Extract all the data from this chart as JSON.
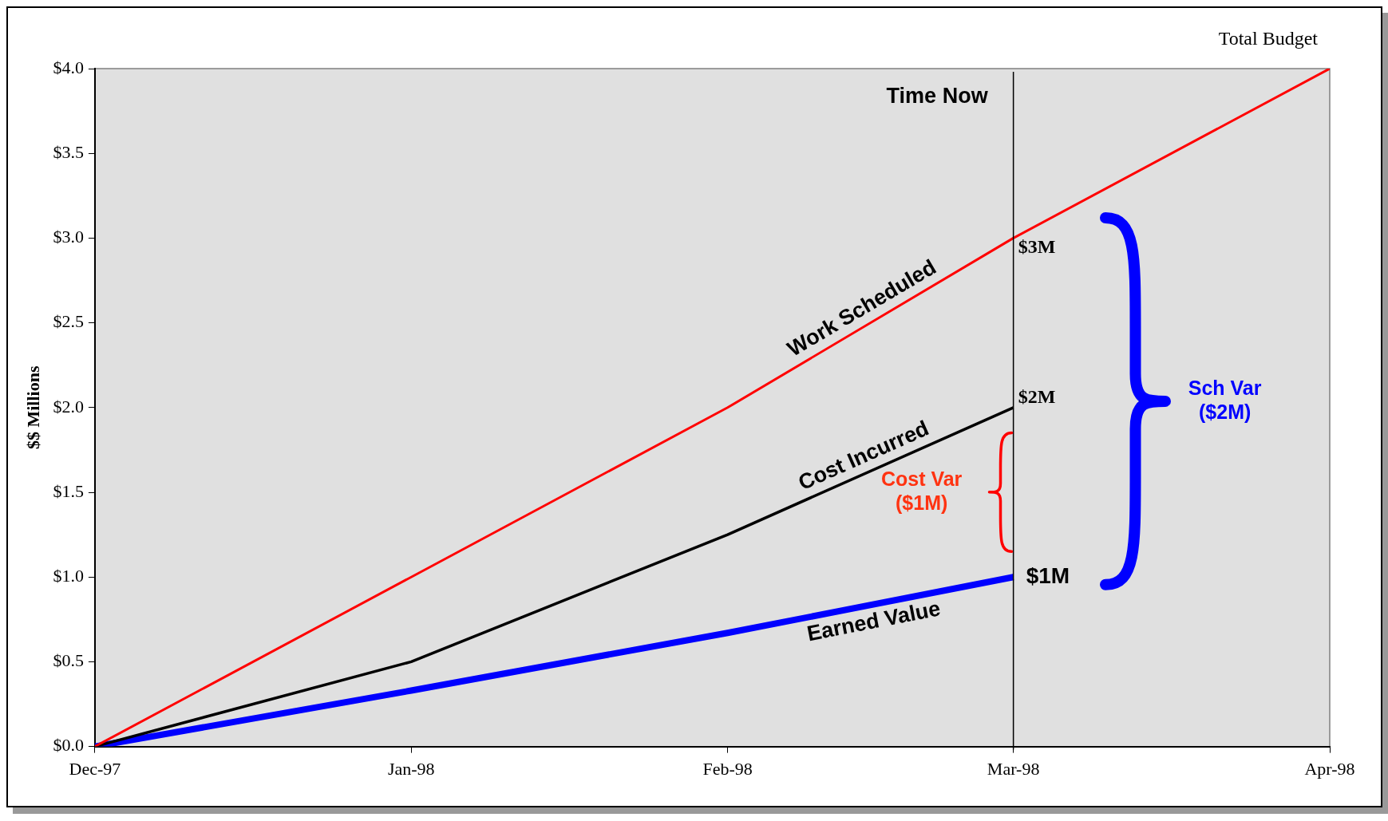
{
  "chart_data": {
    "type": "line",
    "x": [
      "1997-12",
      "1998-01",
      "1998-02",
      "1998-03",
      "1998-04"
    ],
    "series": [
      {
        "name": "Work Scheduled",
        "color": "#ff0000",
        "values": [
          0,
          1,
          2,
          3,
          4
        ]
      },
      {
        "name": "Cost Incurred",
        "color": "#000000",
        "values": [
          0,
          0.5,
          1.25,
          2,
          null
        ]
      },
      {
        "name": "Earned Value",
        "color": "#0000ff",
        "values": [
          0,
          0.33,
          0.67,
          1,
          null
        ]
      }
    ],
    "xlim": [
      "1997-12",
      "1998-04"
    ],
    "xticks": [
      {
        "value": "1997-12",
        "label": "Dec-97"
      },
      {
        "value": "1998-01",
        "label": "Jan-98"
      },
      {
        "value": "1998-02",
        "label": "Feb-98"
      },
      {
        "value": "1998-03",
        "label": "Mar-98"
      },
      {
        "value": "1998-04",
        "label": "Apr-98"
      }
    ],
    "ylabel": "$$ Millions",
    "ylim": [
      0,
      4
    ],
    "yticks": [
      {
        "value": 0,
        "label": "$0.0"
      },
      {
        "value": 0.5,
        "label": "$0.5"
      },
      {
        "value": 1,
        "label": "$1.0"
      },
      {
        "value": 1.5,
        "label": "$1.5"
      },
      {
        "value": 2,
        "label": "$2.0"
      },
      {
        "value": 2.5,
        "label": "$2.5"
      },
      {
        "value": 3,
        "label": "$3.0"
      },
      {
        "value": 3.5,
        "label": "$3.5"
      },
      {
        "value": 4,
        "label": "$4.0"
      }
    ],
    "ref_lines": [
      {
        "axis": "x",
        "value": "1998-03",
        "label": "Time Now",
        "color": "#000000"
      }
    ],
    "annotations": [
      {
        "text": "Total Budget",
        "x": "1998-04",
        "y": 4
      },
      {
        "text": "$3M",
        "x": "1998-03",
        "y": 3
      },
      {
        "text": "$2M",
        "x": "1998-03",
        "y": 2
      },
      {
        "text": "$1M",
        "x": "1998-03",
        "y": 1
      },
      "Cost Var ($1M)",
      "Sch Var ($2M)"
    ],
    "grid": false,
    "legend": false,
    "marker": "none",
    "line_style": "solid"
  }
}
